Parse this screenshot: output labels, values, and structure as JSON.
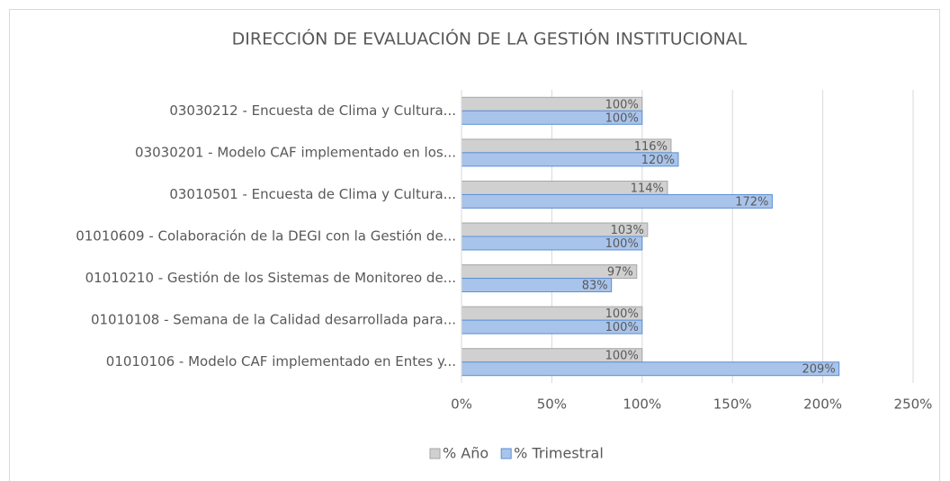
{
  "chart_data": {
    "type": "hbar",
    "title": "DIRECCIÓN DE EVALUACIÓN DE LA GESTIÓN INSTITUCIONAL",
    "categories": [
      "03030212 -  Encuesta de Clima y Cultura...",
      "03030201 - Modelo CAF implementado en los...",
      "03010501 - Encuesta de Clima y Cultura...",
      "01010609 - Colaboración de la DEGI con la Gestión de...",
      "01010210 - Gestión de los Sistemas de Monitoreo de...",
      "01010108 - Semana de la Calidad desarrollada para...",
      "01010106 - Modelo CAF  implementado en Entes y..."
    ],
    "series": [
      {
        "name": "% Año",
        "color": "#d0d0d0",
        "stroke": "#a6a6a6",
        "values": [
          100,
          116,
          114,
          103,
          97,
          100,
          100
        ],
        "value_labels": [
          "100%",
          "116%",
          "114%",
          "103%",
          "97%",
          "100%",
          "100%"
        ]
      },
      {
        "name": "% Trimestral",
        "color": "#a9c4eb",
        "stroke": "#5b8fd4",
        "values": [
          100,
          120,
          172,
          100,
          83,
          100,
          209
        ],
        "value_labels": [
          "100%",
          "120%",
          "172%",
          "100%",
          "83%",
          "100%",
          "209%"
        ]
      }
    ],
    "xlim": [
      0,
      250
    ],
    "xticks": [
      {
        "value": 0,
        "label": "0%"
      },
      {
        "value": 50,
        "label": "50%"
      },
      {
        "value": 100,
        "label": "100%"
      },
      {
        "value": 150,
        "label": "150%"
      },
      {
        "value": 200,
        "label": "200%"
      },
      {
        "value": 250,
        "label": "250%"
      }
    ],
    "grid": true,
    "legend": "bottom"
  }
}
